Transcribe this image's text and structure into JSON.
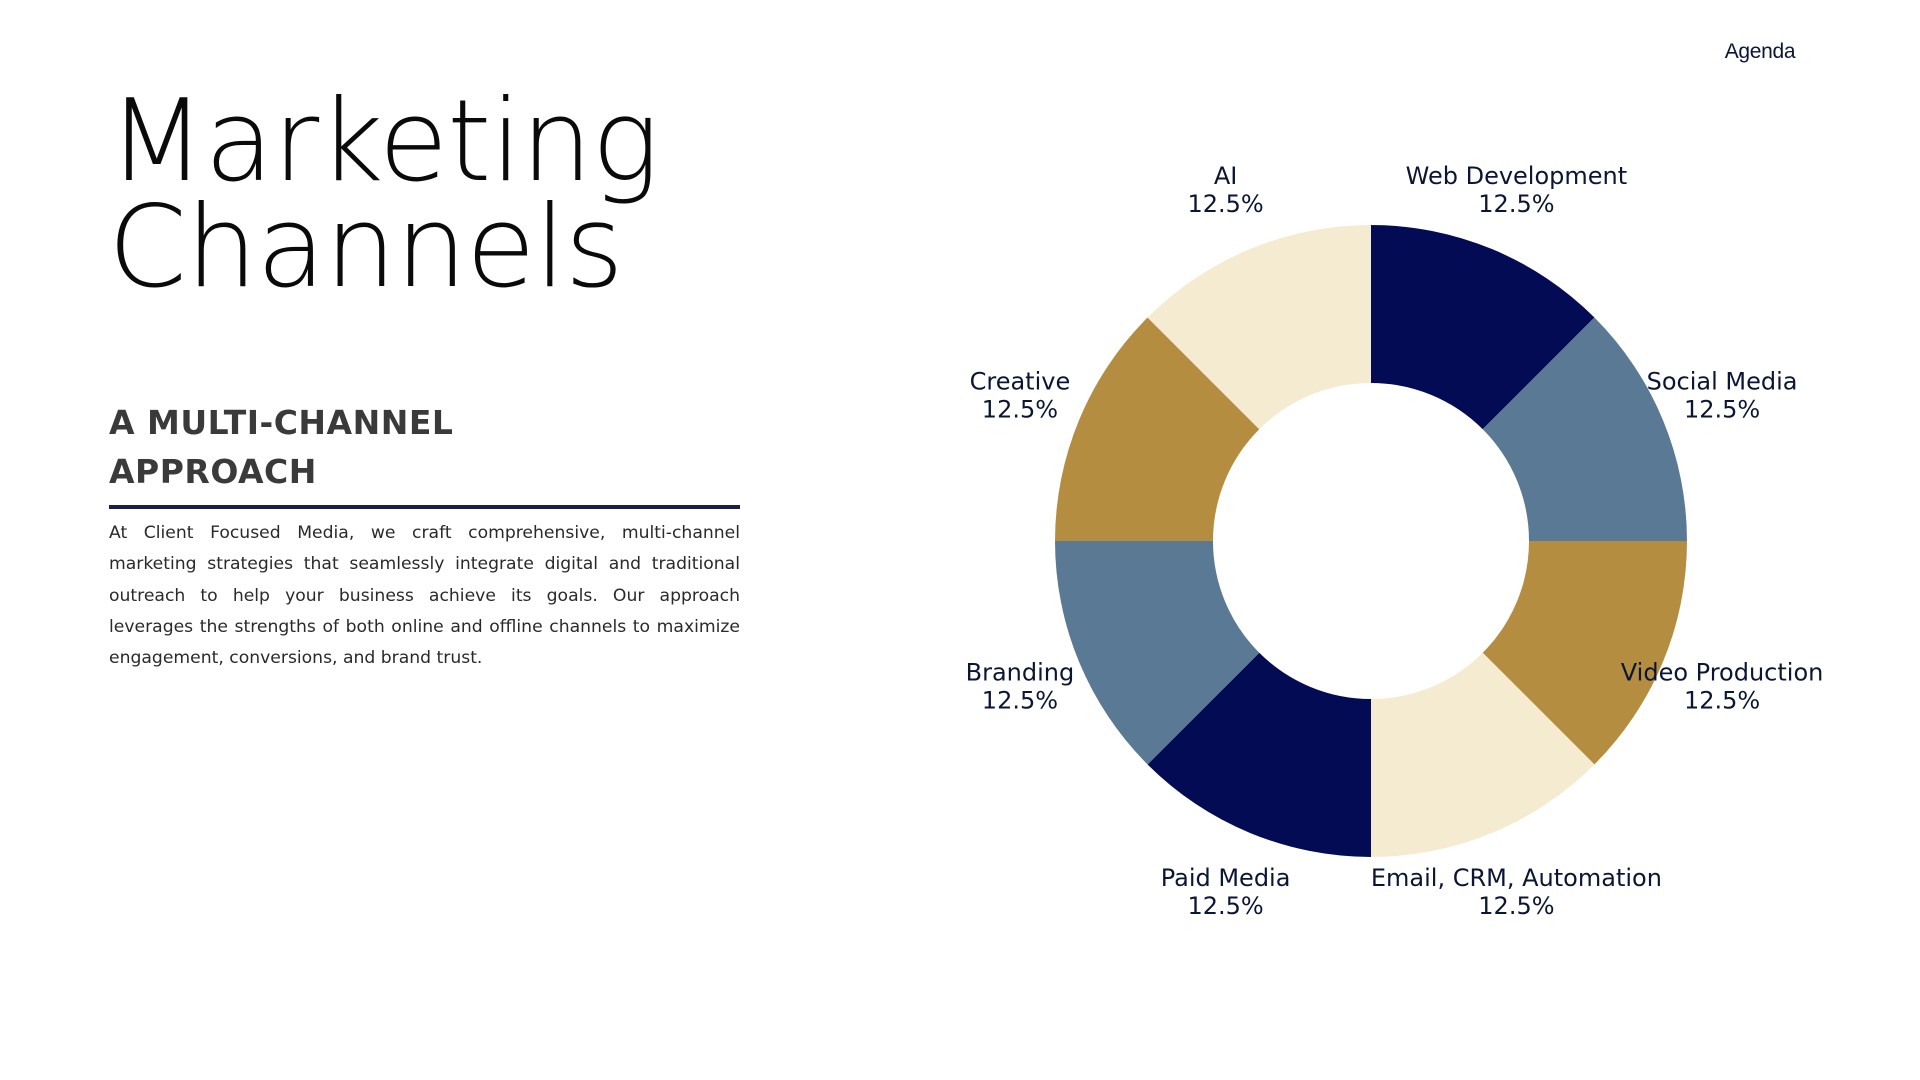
{
  "nav": {
    "agenda_label": "Agenda"
  },
  "header": {
    "title_line1": "Marketing",
    "title_line2": "Channels"
  },
  "section": {
    "subtitle_line1": "A MULTI-CHANNEL",
    "subtitle_line2": "APPROACH",
    "body": "At Client Focused Media, we craft comprehensive, multi-channel marketing strategies that seamlessly integrate digital and traditional outreach to help your business achieve its goals. Our approach leverages the strengths of both online and offline channels to maximize engagement, conversions, and brand trust."
  },
  "colors": {
    "navy": "#030b54",
    "slate": "#5a7995",
    "gold": "#b48d40",
    "cream": "#f5ebd1",
    "accent_rule": "#1a1f4a"
  },
  "chart_data": {
    "type": "pie",
    "variant": "donut",
    "start": "12 o'clock, clockwise",
    "categories": [
      "Web Development",
      "Social Media",
      "Video Production",
      "Email, CRM, Automation",
      "Paid Media",
      "Branding",
      "Creative",
      "AI"
    ],
    "values": [
      12.5,
      12.5,
      12.5,
      12.5,
      12.5,
      12.5,
      12.5,
      12.5
    ],
    "value_labels": [
      "12.5%",
      "12.5%",
      "12.5%",
      "12.5%",
      "12.5%",
      "12.5%",
      "12.5%",
      "12.5%"
    ],
    "colors": [
      "#030b54",
      "#5a7995",
      "#b48d40",
      "#f5ebd1",
      "#030b54",
      "#5a7995",
      "#b48d40",
      "#f5ebd1"
    ],
    "title": "",
    "legend": "none"
  }
}
